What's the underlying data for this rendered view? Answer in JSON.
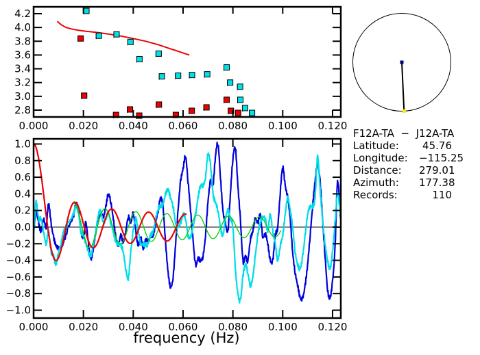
{
  "chart_data": [
    {
      "type": "scatter",
      "name": "dispersion-panel",
      "xlim": [
        0.0,
        0.1233
      ],
      "ylim": [
        2.7,
        4.3
      ],
      "x_ticks": [
        "0.000",
        "0.020",
        "0.040",
        "0.060",
        "0.080",
        "0.100",
        "0.120"
      ],
      "x_tick_values": [
        0.0,
        0.02,
        0.04,
        0.06,
        0.08,
        0.1,
        0.12
      ],
      "y_ticks": [
        "2.8",
        "3.0",
        "3.2",
        "3.4",
        "3.6",
        "3.8",
        "4.0",
        "4.2"
      ],
      "y_tick_values": [
        2.8,
        3.0,
        3.2,
        3.4,
        3.6,
        3.8,
        4.0,
        4.2
      ],
      "xlabel": "",
      "ylabel": "",
      "grid": false,
      "series": [
        {
          "name": "model-curve",
          "kind": "line",
          "color": "#ee0000",
          "x": [
            0.0095,
            0.011,
            0.013,
            0.015,
            0.018,
            0.021,
            0.025,
            0.03,
            0.035,
            0.04,
            0.045,
            0.05,
            0.055,
            0.06,
            0.0625
          ],
          "y": [
            4.09,
            4.04,
            4.0,
            3.98,
            3.96,
            3.945,
            3.93,
            3.905,
            3.875,
            3.84,
            3.8,
            3.75,
            3.69,
            3.63,
            3.6
          ]
        },
        {
          "name": "group-velocity-points",
          "kind": "points",
          "color": "#00e0e8",
          "x": [
            0.0212,
            0.0262,
            0.0333,
            0.0389,
            0.0425,
            0.0502,
            0.0515,
            0.058,
            0.0636,
            0.0697,
            0.0775,
            0.0789,
            0.0829,
            0.083,
            0.0849,
            0.0877
          ],
          "y": [
            4.24,
            3.88,
            3.9,
            3.79,
            3.54,
            3.62,
            3.29,
            3.3,
            3.31,
            3.32,
            3.42,
            3.2,
            3.14,
            2.95,
            2.83,
            2.76
          ]
        },
        {
          "name": "phase-velocity-points",
          "kind": "points",
          "color": "#ee0000",
          "x": [
            0.0189,
            0.0203,
            0.0331,
            0.0387,
            0.0424,
            0.0503,
            0.0571,
            0.0635,
            0.0694,
            0.0775,
            0.0792,
            0.0821
          ],
          "y": [
            3.84,
            3.01,
            2.73,
            2.81,
            2.72,
            2.88,
            2.73,
            2.79,
            2.84,
            2.95,
            2.79,
            2.76
          ]
        }
      ]
    },
    {
      "type": "line",
      "name": "coherency-panel",
      "title": "",
      "xlabel": "frequency (Hz)",
      "ylabel": "",
      "xlim": [
        0.0,
        0.1233
      ],
      "ylim": [
        -1.1,
        1.1
      ],
      "x_ticks": [
        "0.000",
        "0.020",
        "0.040",
        "0.060",
        "0.080",
        "0.100",
        "0.120"
      ],
      "x_tick_values": [
        0.0,
        0.02,
        0.04,
        0.06,
        0.08,
        0.1,
        0.12
      ],
      "y_ticks": [
        "1.0",
        "0.8",
        "0.6",
        "0.4",
        "0.2",
        "0.0",
        "−0.2",
        "−0.4",
        "−0.6",
        "−0.8",
        "−1.0"
      ],
      "y_tick_values": [
        1.0,
        0.8,
        0.6,
        0.4,
        0.2,
        0.0,
        -0.2,
        -0.4,
        -0.6,
        -0.8,
        -1.0
      ],
      "zero_line": true,
      "grid": false,
      "series": [
        {
          "name": "coherency-real",
          "color": "#0000dd",
          "x": [
            0.0,
            0.001,
            0.002,
            0.003,
            0.004,
            0.005,
            0.006,
            0.007,
            0.008,
            0.009,
            0.01,
            0.011,
            0.012,
            0.014,
            0.016,
            0.017,
            0.018,
            0.019,
            0.02,
            0.021,
            0.022,
            0.023,
            0.024,
            0.025,
            0.026,
            0.027,
            0.028,
            0.029,
            0.03,
            0.031,
            0.032,
            0.033,
            0.034,
            0.035,
            0.036,
            0.037,
            0.038,
            0.039,
            0.04,
            0.041,
            0.042,
            0.043,
            0.044,
            0.045,
            0.046,
            0.047,
            0.048,
            0.049,
            0.05,
            0.051,
            0.052,
            0.053,
            0.054,
            0.055,
            0.056,
            0.057,
            0.058,
            0.059,
            0.06,
            0.061,
            0.062,
            0.063,
            0.064,
            0.065,
            0.066,
            0.067,
            0.068,
            0.069,
            0.07,
            0.071,
            0.072,
            0.073,
            0.074,
            0.075,
            0.076,
            0.077,
            0.078,
            0.079,
            0.08,
            0.081,
            0.082,
            0.083,
            0.084,
            0.085,
            0.086,
            0.087,
            0.088,
            0.089,
            0.09,
            0.091,
            0.092,
            0.093,
            0.094,
            0.095,
            0.096,
            0.097,
            0.098,
            0.099,
            0.1,
            0.101,
            0.102,
            0.103,
            0.104,
            0.105,
            0.106,
            0.107,
            0.108,
            0.109,
            0.11,
            0.111,
            0.112,
            0.113,
            0.114,
            0.115,
            0.116,
            0.117,
            0.118,
            0.119,
            0.12,
            0.121,
            0.122,
            0.1233
          ],
          "y": [
            -0.05,
            0.18,
            0.05,
            -0.05,
            0.1,
            0.0,
            0.28,
            0.05,
            -0.12,
            -0.22,
            -0.25,
            -0.23,
            -0.18,
            0.0,
            0.12,
            0.28,
            0.2,
            -0.05,
            -0.12,
            0.05,
            -0.2,
            -0.38,
            -0.25,
            -0.05,
            0.12,
            0.18,
            0.12,
            0.25,
            0.4,
            0.3,
            0.1,
            -0.12,
            -0.22,
            -0.1,
            -0.18,
            -0.05,
            0.12,
            0.05,
            0.16,
            -0.05,
            -0.22,
            -0.12,
            -0.25,
            -0.15,
            -0.18,
            -0.1,
            -0.1,
            0.05,
            0.2,
            0.35,
            0.22,
            -0.2,
            -0.55,
            -0.72,
            -0.6,
            -0.2,
            0.2,
            0.55,
            0.7,
            0.85,
            0.55,
            0.2,
            -0.15,
            -0.45,
            -0.38,
            -0.4,
            -0.35,
            -0.1,
            0.3,
            0.55,
            0.5,
            0.85,
            1.0,
            0.6,
            0.2,
            0.05,
            -0.05,
            0.4,
            0.82,
            0.95,
            0.5,
            0.1,
            -0.4,
            -0.35,
            -0.4,
            -0.15,
            -0.05,
            0.1,
            0.05,
            0.15,
            -0.12,
            -0.08,
            -0.2,
            -0.4,
            -0.4,
            -0.1,
            0.0,
            0.42,
            0.72,
            0.5,
            0.35,
            0.1,
            -0.3,
            -0.55,
            -0.7,
            -0.85,
            -0.85,
            -0.7,
            -0.45,
            -0.1,
            0.25,
            0.55,
            0.75,
            0.55,
            0.1,
            -0.35,
            -0.75,
            -0.85,
            -0.65,
            -0.25,
            0.55,
            0.1
          ],
          "note": "approximate trace read from plot"
        },
        {
          "name": "coherency-imag-or-alt",
          "color": "#00dde8",
          "x": [
            0.0,
            0.001,
            0.002,
            0.003,
            0.004,
            0.005,
            0.006,
            0.007,
            0.008,
            0.009,
            0.01,
            0.011,
            0.012,
            0.014,
            0.016,
            0.017,
            0.018,
            0.019,
            0.02,
            0.021,
            0.022,
            0.023,
            0.024,
            0.025,
            0.026,
            0.027,
            0.028,
            0.029,
            0.03,
            0.031,
            0.032,
            0.033,
            0.034,
            0.035,
            0.036,
            0.037,
            0.038,
            0.039,
            0.04,
            0.041,
            0.042,
            0.043,
            0.044,
            0.045,
            0.046,
            0.047,
            0.048,
            0.049,
            0.05,
            0.051,
            0.052,
            0.053,
            0.054,
            0.055,
            0.056,
            0.057,
            0.058,
            0.059,
            0.06,
            0.061,
            0.062,
            0.063,
            0.064,
            0.065,
            0.066,
            0.067,
            0.068,
            0.069,
            0.07,
            0.071,
            0.072,
            0.073,
            0.074,
            0.075,
            0.076,
            0.077,
            0.078,
            0.079,
            0.08,
            0.081,
            0.082,
            0.083,
            0.084,
            0.085,
            0.086,
            0.087,
            0.088,
            0.089,
            0.09,
            0.091,
            0.092,
            0.093,
            0.094,
            0.095,
            0.096,
            0.097,
            0.098,
            0.099,
            0.1,
            0.101,
            0.102,
            0.103,
            0.104,
            0.105,
            0.106,
            0.107,
            0.108,
            0.109,
            0.11,
            0.111,
            0.112,
            0.113,
            0.114,
            0.115,
            0.116,
            0.117,
            0.118,
            0.119,
            0.12,
            0.121,
            0.122,
            0.1233
          ],
          "y": [
            -0.08,
            0.3,
            0.1,
            0.1,
            -0.05,
            -0.2,
            -0.05,
            -0.3,
            -0.35,
            -0.45,
            -0.3,
            -0.2,
            -0.05,
            0.05,
            0.15,
            0.25,
            0.18,
            -0.05,
            -0.1,
            -0.2,
            -0.3,
            -0.35,
            -0.2,
            -0.05,
            0.15,
            0.18,
            0.05,
            0.1,
            0.18,
            0.05,
            -0.05,
            -0.18,
            -0.2,
            -0.22,
            -0.3,
            -0.5,
            -0.62,
            -0.3,
            -0.05,
            0.1,
            -0.05,
            -0.2,
            -0.2,
            -0.22,
            -0.2,
            -0.1,
            -0.05,
            0.1,
            0.22,
            0.25,
            0.28,
            0.4,
            0.45,
            0.35,
            0.25,
            0.05,
            0.0,
            0.05,
            0.15,
            0.1,
            -0.1,
            -0.12,
            0.0,
            0.15,
            0.35,
            0.5,
            0.5,
            0.6,
            0.88,
            0.75,
            0.4,
            0.3,
            0.2,
            0.0,
            -0.1,
            0.1,
            0.2,
            0.1,
            0.0,
            -0.5,
            -0.8,
            -0.88,
            -0.6,
            -0.45,
            -0.55,
            -0.7,
            -0.6,
            -0.35,
            -0.1,
            0.05,
            0.12,
            0.1,
            -0.05,
            0.15,
            -0.05,
            -0.2,
            -0.4,
            -0.22,
            -0.1,
            0.15,
            0.35,
            0.2,
            0.0,
            -0.3,
            -0.45,
            -0.5,
            -0.35,
            -0.1,
            0.15,
            0.25,
            0.25,
            0.35,
            0.85,
            0.45,
            0.1,
            -0.2,
            -0.4,
            -0.5,
            -0.3,
            0.05,
            0.4,
            0.15
          ],
          "note": "approximate trace read from plot"
        },
        {
          "name": "model-bessel-fit",
          "color": "#ee0000",
          "kind": "bessel",
          "x_range": [
            0.0,
            0.0615
          ],
          "amplitude": 1.0,
          "note": "J0-like curve: 1.0 at f=0, first min -0.40 near 0.009, peaks ~0.29 @0.016, 0.21 @0.029, 0.17 @0.043, 0.15 @0.055"
        },
        {
          "name": "model-fit-alt",
          "color": "#00cc00",
          "kind": "bessel",
          "x_range": [
            0.0127,
            0.0995
          ],
          "note": "green sinusoid-like fit, peaks ~0.29 @0.016, 0.22 @0.028, 0.17 @0.041, 0.15 @0.053, amplitude decaying to ~0.1"
        }
      ]
    }
  ],
  "station_map": {
    "center_marker_color": "#000080",
    "station_marker_color": "#ffee00",
    "azimuth_deg": 177.38
  },
  "info": {
    "pair": "F12A-TA  −  J12A-TA",
    "rows": [
      {
        "label": "Latitude:",
        "value": "45.76"
      },
      {
        "label": "Longitude:",
        "value": "−115.25"
      },
      {
        "label": "Distance:",
        "value": "279.01"
      },
      {
        "label": "Azimuth:",
        "value": "177.38"
      },
      {
        "label": "Records:",
        "value": "110"
      }
    ]
  }
}
